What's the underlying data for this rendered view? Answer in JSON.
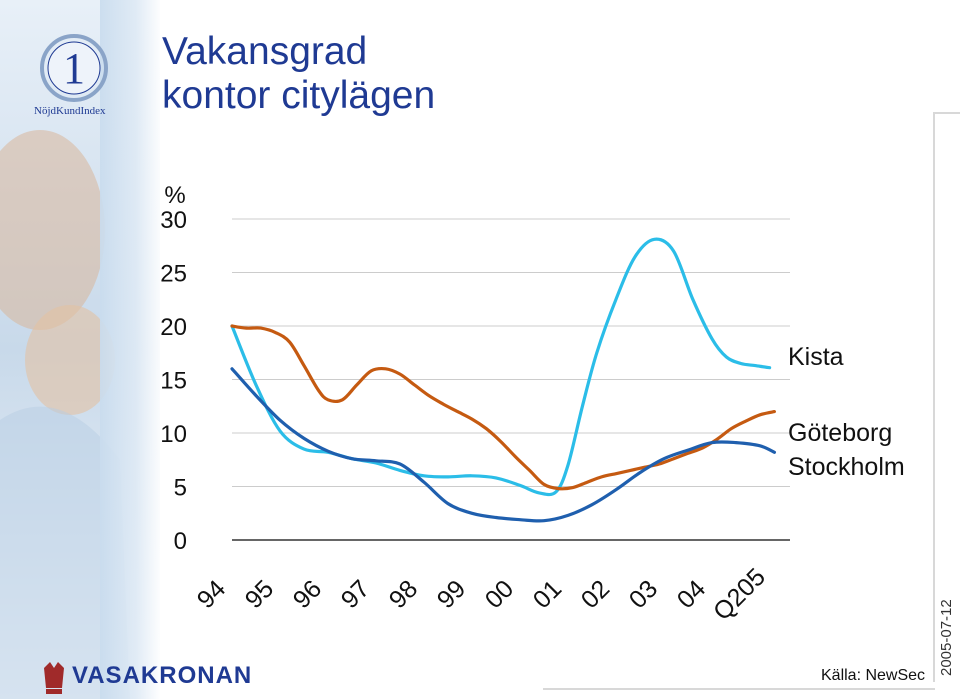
{
  "title": {
    "line1": "Vakansgrad",
    "line2": "kontor citylägen"
  },
  "logo": {
    "text": "NöjdKundIndex",
    "numeral": "1"
  },
  "brand": {
    "name": "VASAKRONAN"
  },
  "footer": {
    "source": "Källa: NewSec",
    "date": "2005-07-12"
  },
  "colors": {
    "title": "#1f3a93",
    "kista": "#2bbde8",
    "goteborg": "#c55a11",
    "stockholm": "#1f5fae",
    "grid": "#cccccc"
  },
  "chart_data": {
    "type": "line",
    "ylabel": "%",
    "ylim": [
      0,
      30
    ],
    "yticks": [
      "0",
      "5",
      "10",
      "15",
      "20",
      "25",
      "30"
    ],
    "xticks": [
      "94",
      "95",
      "96",
      "97",
      "98",
      "99",
      "00",
      "01",
      "02",
      "03",
      "04",
      "Q205"
    ],
    "grid": "horizontal",
    "legend": "right, labels beside line ends",
    "series": [
      {
        "name": "Kista",
        "x": [
          94.0,
          94.5,
          95.0,
          95.5,
          96.0,
          96.5,
          97.0,
          97.5,
          98.0,
          98.5,
          99.0,
          99.5,
          100.0,
          100.4,
          100.75,
          101.0,
          101.3,
          101.6,
          102.0,
          102.4,
          102.8,
          103.2,
          103.6,
          104.0,
          104.3,
          104.6,
          104.9,
          105.2
        ],
        "values": [
          20,
          14.5,
          10.2,
          8.5,
          8.2,
          7.6,
          7.2,
          6.5,
          6,
          5.9,
          6,
          5.8,
          5.1,
          4.4,
          4.5,
          7.0,
          12.5,
          17.5,
          22.5,
          26.5,
          28.1,
          27.0,
          22.5,
          18.8,
          17.1,
          16.5,
          16.3,
          16.1
        ]
      },
      {
        "name": "Göteborg",
        "x": [
          94.0,
          94.3,
          94.6,
          94.9,
          95.2,
          95.5,
          95.8,
          96.0,
          96.3,
          96.6,
          96.9,
          97.2,
          97.5,
          97.8,
          98.1,
          98.4,
          98.7,
          99.0,
          99.3,
          99.6,
          99.9,
          100.2,
          100.5,
          100.8,
          101.1,
          101.4,
          101.7,
          102.0,
          102.3,
          102.6,
          102.9,
          103.2,
          103.5,
          103.8,
          104.1,
          104.4,
          104.7,
          105.0,
          105.3
        ],
        "values": [
          20,
          19.8,
          19.8,
          19.4,
          18.5,
          16.3,
          14,
          13.1,
          13.1,
          14.5,
          15.8,
          16,
          15.5,
          14.5,
          13.5,
          12.7,
          12,
          11.3,
          10.4,
          9.2,
          7.8,
          6.5,
          5.2,
          4.8,
          4.9,
          5.4,
          5.9,
          6.2,
          6.5,
          6.8,
          7.1,
          7.6,
          8.1,
          8.6,
          9.4,
          10.4,
          11.1,
          11.7,
          12.0
        ]
      },
      {
        "name": "Stockholm",
        "x": [
          94.0,
          94.5,
          95.0,
          95.5,
          96.0,
          96.5,
          97.0,
          97.5,
          98.0,
          98.5,
          99.0,
          99.5,
          100.0,
          100.5,
          101.0,
          101.5,
          102.0,
          102.5,
          103.0,
          103.5,
          104.0,
          104.5,
          105.0,
          105.3
        ],
        "values": [
          16,
          13.5,
          11.2,
          9.5,
          8.3,
          7.6,
          7.4,
          7.1,
          5.4,
          3.4,
          2.5,
          2.1,
          1.9,
          1.8,
          2.3,
          3.3,
          4.7,
          6.3,
          7.6,
          8.4,
          9.1,
          9.1,
          8.8,
          8.2
        ]
      }
    ]
  }
}
